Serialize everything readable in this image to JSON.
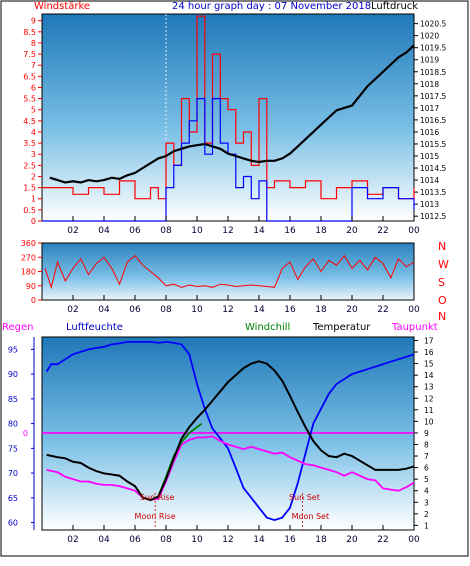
{
  "header": {
    "left_label": "Windstärke",
    "title": "24 hour graph day : 07 November 2018",
    "right_label": "Luftdruck"
  },
  "colors": {
    "wind": "#ff0000",
    "gust": "#0000ff",
    "pressure": "#000000",
    "direction": "#ff0000",
    "humidity": "#0000ff",
    "temperature": "#000000",
    "windchill": "#008000",
    "dewpoint": "#ff00ff",
    "frame": "#000000"
  },
  "chart_data": [
    {
      "type": "line",
      "panel": "wind-pressure",
      "x_ticks": [
        "02",
        "04",
        "06",
        "08",
        "10",
        "12",
        "14",
        "16",
        "18",
        "20",
        "22",
        "00"
      ],
      "x_tick_hours": [
        2,
        4,
        6,
        8,
        10,
        12,
        14,
        16,
        18,
        20,
        22,
        24
      ],
      "xlim": [
        0,
        24
      ],
      "left_axis": {
        "label": "Windstärke",
        "ticks": [
          "0",
          "0.5",
          "1",
          "1.5",
          "2",
          "2.5",
          "3",
          "3.5",
          "4",
          "4.5",
          "5",
          "5.5",
          "6",
          "6.5",
          "7",
          "7.5",
          "8",
          "8.5",
          "9"
        ],
        "ylim": [
          0,
          9.3
        ]
      },
      "right_axis": {
        "label": "Luftdruck",
        "ticks": [
          "1012.5",
          "1013",
          "1013.5",
          "1014",
          "1014.5",
          "1015",
          "1015.5",
          "1016",
          "1016.5",
          "1017",
          "1017.5",
          "1018",
          "1018.5",
          "1019",
          "1019.5",
          "1020",
          "1020.5"
        ],
        "ylim": [
          1012.3,
          1020.9
        ]
      },
      "pressure_series": {
        "x": [
          0.5,
          1,
          1.5,
          2,
          2.5,
          3,
          3.5,
          4,
          4.5,
          5,
          5.5,
          6,
          6.5,
          7,
          7.5,
          8,
          8.5,
          9,
          9.5,
          10,
          10.5,
          11,
          11.5,
          12,
          12.5,
          13,
          13.5,
          14,
          14.5,
          15,
          15.5,
          16,
          16.5,
          17,
          17.5,
          18,
          18.5,
          19,
          19.5,
          20,
          20.5,
          21,
          21.5,
          22,
          22.5,
          23,
          23.5,
          24
        ],
        "y": [
          1014.1,
          1014.0,
          1013.9,
          1013.95,
          1013.9,
          1014.0,
          1013.95,
          1014.0,
          1014.1,
          1014.05,
          1014.2,
          1014.3,
          1014.5,
          1014.7,
          1014.9,
          1015.0,
          1015.2,
          1015.3,
          1015.4,
          1015.45,
          1015.5,
          1015.4,
          1015.3,
          1015.1,
          1015.0,
          1014.9,
          1014.8,
          1014.75,
          1014.8,
          1014.8,
          1014.9,
          1015.1,
          1015.4,
          1015.7,
          1016.0,
          1016.3,
          1016.6,
          1016.9,
          1017.0,
          1017.1,
          1017.5,
          1017.9,
          1018.2,
          1018.5,
          1018.8,
          1019.1,
          1019.3,
          1019.6
        ]
      },
      "wind_steps": {
        "x": [
          0,
          2,
          3,
          4,
          5,
          6,
          7,
          7.5,
          8,
          8.5,
          9,
          9.5,
          10,
          10.5,
          11,
          11.5,
          12,
          12.5,
          13,
          13.5,
          14,
          14.5,
          15,
          16,
          17,
          18,
          19,
          20,
          21,
          22,
          23,
          24
        ],
        "y": [
          1.5,
          1.2,
          1.5,
          1.2,
          1.8,
          1.0,
          1.5,
          1.0,
          3.5,
          2.5,
          5.5,
          4.0,
          9.2,
          3.5,
          7.5,
          5.5,
          5.0,
          3.5,
          4.0,
          2.5,
          5.5,
          1.5,
          1.8,
          1.5,
          1.8,
          1.0,
          1.5,
          1.8,
          1.2,
          1.5,
          1.0,
          1.5
        ]
      },
      "gust_steps": {
        "x": [
          0,
          7,
          8,
          8.5,
          9,
          9.5,
          10,
          10.5,
          11,
          11.5,
          12,
          12.5,
          13,
          13.5,
          14,
          14.5,
          15,
          16,
          17,
          18,
          19,
          20,
          21,
          22,
          23,
          24
        ],
        "y": [
          0,
          0,
          1.5,
          2.5,
          3.5,
          4.5,
          5.5,
          3.0,
          5.5,
          3.5,
          3.0,
          1.5,
          2.0,
          1.0,
          1.8,
          0,
          0,
          0,
          0,
          0,
          0,
          1.5,
          1.0,
          1.5,
          1.0,
          0.5
        ]
      }
    },
    {
      "type": "line",
      "panel": "wind-direction",
      "x_ticks": [
        "02",
        "04",
        "06",
        "08",
        "10",
        "12",
        "14",
        "16",
        "18",
        "20",
        "22",
        "00"
      ],
      "xlim": [
        0,
        24
      ],
      "left_axis": {
        "ticks": [
          "0",
          "90",
          "180",
          "270",
          "360"
        ],
        "ylim": [
          0,
          360
        ]
      },
      "right_axis": {
        "ticks": [
          "N",
          "W",
          "S",
          "O",
          "N"
        ]
      },
      "direction_series": {
        "x": [
          0.2,
          0.6,
          1,
          1.5,
          2,
          2.5,
          3,
          3.5,
          4,
          4.5,
          5,
          5.5,
          6,
          6.5,
          7,
          7.5,
          8,
          8.5,
          9,
          9.5,
          10,
          10.5,
          11,
          11.5,
          12,
          12.5,
          13,
          13.5,
          14,
          14.5,
          15,
          15.5,
          16,
          16.5,
          17,
          17.5,
          18,
          18.5,
          19,
          19.5,
          20,
          20.5,
          21,
          21.5,
          22,
          22.5,
          23,
          23.5,
          24
        ],
        "y": [
          200,
          80,
          240,
          120,
          200,
          260,
          160,
          230,
          270,
          200,
          100,
          240,
          280,
          220,
          180,
          140,
          90,
          100,
          80,
          95,
          85,
          90,
          80,
          100,
          95,
          85,
          90,
          95,
          90,
          85,
          80,
          200,
          240,
          130,
          210,
          260,
          180,
          250,
          220,
          280,
          200,
          250,
          190,
          270,
          230,
          140,
          260,
          210,
          240
        ]
      }
    },
    {
      "type": "line",
      "panel": "humidity-temperature",
      "legend": [
        "Regen",
        "Luftfeuchte",
        "Windchill",
        "Temperatur",
        "Taupunkt"
      ],
      "x_ticks": [
        "02",
        "04",
        "06",
        "08",
        "10",
        "12",
        "14",
        "16",
        "18",
        "20",
        "22",
        "00"
      ],
      "xlim": [
        0,
        24
      ],
      "left_axis": {
        "ticks": [
          "60",
          "65",
          "70",
          "75",
          "80",
          "85",
          "90",
          "95"
        ],
        "ylim": [
          58.5,
          97.5
        ]
      },
      "rain_axis": {
        "ticks": [
          "0"
        ]
      },
      "right_axis": {
        "ticks": [
          "1",
          "2",
          "3",
          "4",
          "5",
          "6",
          "7",
          "8",
          "9",
          "10",
          "11",
          "12",
          "13",
          "14",
          "15",
          "16",
          "17"
        ],
        "ylim": [
          0.6,
          17.3
        ]
      },
      "annotations": [
        "Sun Rise",
        "Moon Rise",
        "Sun Set",
        "Moon Set"
      ],
      "annotation_hours": [
        7.3,
        7.3,
        16.8,
        16.8
      ],
      "humidity_series": {
        "x": [
          0.3,
          0.6,
          1,
          1.5,
          2,
          2.5,
          3,
          3.5,
          4,
          4.5,
          5,
          5.5,
          6,
          6.5,
          7,
          7.5,
          8,
          8.5,
          9,
          9.5,
          10,
          10.5,
          11,
          11.5,
          12,
          12.5,
          13,
          13.5,
          14,
          14.5,
          15,
          15.5,
          16,
          16.5,
          17,
          17.5,
          18,
          18.5,
          19,
          19.5,
          20,
          20.5,
          21,
          21.5,
          22,
          22.5,
          23,
          23.5,
          24
        ],
        "y": [
          90.5,
          92,
          92,
          93,
          94,
          94.5,
          95,
          95.3,
          95.5,
          96,
          96.2,
          96.5,
          96.5,
          96.5,
          96.5,
          96.3,
          96.5,
          96.3,
          96.0,
          94,
          88,
          83,
          79,
          77,
          75,
          71,
          67,
          65,
          63,
          61,
          60.5,
          61,
          63,
          68,
          74,
          80,
          83,
          86,
          88,
          89,
          90,
          90.5,
          91,
          91.5,
          92,
          92.5,
          93,
          93.5,
          94
        ]
      },
      "temperature_series": {
        "x": [
          0.3,
          1,
          1.5,
          2,
          2.5,
          3,
          3.5,
          4,
          4.5,
          5,
          5.5,
          6,
          6.5,
          7,
          7.5,
          8,
          8.5,
          9,
          9.5,
          10,
          10.5,
          11,
          11.5,
          12,
          12.5,
          13,
          13.5,
          14,
          14.5,
          15,
          15.5,
          16,
          16.5,
          17,
          17.5,
          18,
          18.5,
          19,
          19.5,
          20,
          20.5,
          21,
          21.5,
          22,
          22.5,
          23,
          23.5,
          24
        ],
        "y": [
          7.1,
          6.9,
          6.8,
          6.5,
          6.4,
          6.0,
          5.7,
          5.5,
          5.4,
          5.3,
          4.8,
          4.4,
          3.4,
          3.2,
          3.5,
          5.0,
          6.8,
          8.5,
          9.5,
          10.3,
          11.0,
          11.8,
          12.6,
          13.4,
          14.0,
          14.6,
          15.0,
          15.2,
          15.0,
          14.4,
          13.5,
          12.2,
          10.8,
          9.5,
          8.3,
          7.5,
          7.0,
          6.9,
          7.2,
          7.0,
          6.6,
          6.2,
          5.8,
          5.8,
          5.8,
          5.8,
          5.9,
          6.1
        ]
      },
      "windchill_series": {
        "x": [
          7.0,
          7.5,
          8,
          8.5,
          9,
          9.5,
          10,
          10.3
        ],
        "y": [
          3.2,
          3.5,
          5.2,
          7.0,
          8.2,
          9.0,
          9.5,
          9.8
        ]
      },
      "dewpoint_series": {
        "x": [
          0.3,
          1,
          1.5,
          2,
          2.5,
          3,
          3.5,
          4,
          4.5,
          5,
          5.5,
          6,
          6.5,
          7,
          7.5,
          8,
          8.5,
          9,
          9.5,
          10,
          10.5,
          11,
          11.5,
          12,
          12.5,
          13,
          13.5,
          14,
          14.5,
          15,
          15.5,
          16,
          16.5,
          17,
          17.5,
          18,
          18.5,
          19,
          19.5,
          20,
          20.5,
          21,
          21.5,
          22,
          22.5,
          23,
          23.5,
          24
        ],
        "y": [
          5.8,
          5.6,
          5.2,
          5.0,
          4.8,
          4.8,
          4.6,
          4.5,
          4.5,
          4.4,
          4.2,
          4.0,
          3.4,
          3.2,
          3.3,
          4.8,
          6.5,
          8.0,
          8.4,
          8.6,
          8.6,
          8.7,
          8.3,
          8.0,
          7.8,
          7.6,
          7.8,
          7.6,
          7.4,
          7.2,
          7.3,
          6.9,
          6.6,
          6.3,
          6.2,
          6.0,
          5.8,
          5.6,
          5.3,
          5.6,
          5.3,
          5.0,
          4.9,
          4.2,
          4.1,
          4.0,
          4.3,
          4.7
        ]
      }
    }
  ]
}
